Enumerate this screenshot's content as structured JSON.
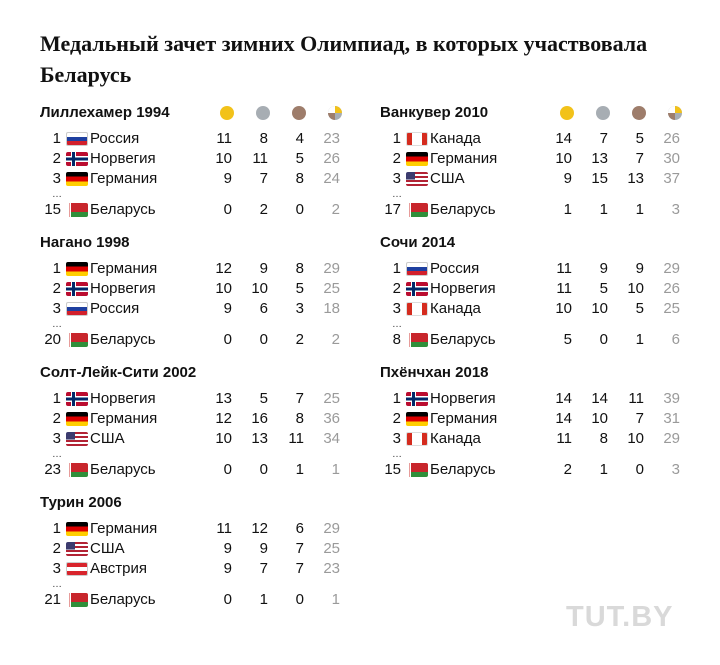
{
  "title": "Медальный зачет зимних Олимпиад, в которых участвовала Беларусь",
  "watermark": "TUT.BY",
  "medal_colors": {
    "gold": "#f2c21a",
    "silver": "#a7adb3",
    "bronze": "#9e7d6b",
    "total_text": "#9a9a9a"
  },
  "legend_icons": [
    "gold-medal-icon",
    "silver-medal-icon",
    "bronze-medal-icon",
    "total-medals-icon"
  ],
  "chart_data": {
    "type": "table",
    "columns": [
      "rank",
      "country",
      "gold",
      "silver",
      "bronze",
      "total"
    ],
    "games": [
      {
        "title": "Лиллехамер 1994",
        "rows": [
          {
            "rank": "1",
            "country": "Россия",
            "flag": "russia",
            "gold": 11,
            "silver": 8,
            "bronze": 4,
            "total": 23
          },
          {
            "rank": "2",
            "country": "Норвегия",
            "flag": "norway",
            "gold": 10,
            "silver": 11,
            "bronze": 5,
            "total": 26
          },
          {
            "rank": "3",
            "country": "Германия",
            "flag": "germany",
            "gold": 9,
            "silver": 7,
            "bronze": 8,
            "total": 24
          }
        ],
        "belarus": {
          "rank": "15",
          "country": "Беларусь",
          "flag": "belarus",
          "gold": 0,
          "silver": 2,
          "bronze": 0,
          "total": 2
        }
      },
      {
        "title": "Ванкувер 2010",
        "rows": [
          {
            "rank": "1",
            "country": "Канада",
            "flag": "canada",
            "gold": 14,
            "silver": 7,
            "bronze": 5,
            "total": 26
          },
          {
            "rank": "2",
            "country": "Германия",
            "flag": "germany",
            "gold": 10,
            "silver": 13,
            "bronze": 7,
            "total": 30
          },
          {
            "rank": "3",
            "country": "США",
            "flag": "usa",
            "gold": 9,
            "silver": 15,
            "bronze": 13,
            "total": 37
          }
        ],
        "belarus": {
          "rank": "17",
          "country": "Беларусь",
          "flag": "belarus",
          "gold": 1,
          "silver": 1,
          "bronze": 1,
          "total": 3
        }
      },
      {
        "title": "Нагано 1998",
        "rows": [
          {
            "rank": "1",
            "country": "Германия",
            "flag": "germany",
            "gold": 12,
            "silver": 9,
            "bronze": 8,
            "total": 29
          },
          {
            "rank": "2",
            "country": "Норвегия",
            "flag": "norway",
            "gold": 10,
            "silver": 10,
            "bronze": 5,
            "total": 25
          },
          {
            "rank": "3",
            "country": "Россия",
            "flag": "russia",
            "gold": 9,
            "silver": 6,
            "bronze": 3,
            "total": 18
          }
        ],
        "belarus": {
          "rank": "20",
          "country": "Беларусь",
          "flag": "belarus",
          "gold": 0,
          "silver": 0,
          "bronze": 2,
          "total": 2
        }
      },
      {
        "title": "Сочи 2014",
        "rows": [
          {
            "rank": "1",
            "country": "Россия",
            "flag": "russia",
            "gold": 11,
            "silver": 9,
            "bronze": 9,
            "total": 29
          },
          {
            "rank": "2",
            "country": "Норвегия",
            "flag": "norway",
            "gold": 11,
            "silver": 5,
            "bronze": 10,
            "total": 26
          },
          {
            "rank": "3",
            "country": "Канада",
            "flag": "canada",
            "gold": 10,
            "silver": 10,
            "bronze": 5,
            "total": 25
          }
        ],
        "belarus": {
          "rank": "8",
          "country": "Беларусь",
          "flag": "belarus",
          "gold": 5,
          "silver": 0,
          "bronze": 1,
          "total": 6
        }
      },
      {
        "title": "Солт-Лейк-Сити 2002",
        "rows": [
          {
            "rank": "1",
            "country": "Норвегия",
            "flag": "norway",
            "gold": 13,
            "silver": 5,
            "bronze": 7,
            "total": 25
          },
          {
            "rank": "2",
            "country": "Германия",
            "flag": "germany",
            "gold": 12,
            "silver": 16,
            "bronze": 8,
            "total": 36
          },
          {
            "rank": "3",
            "country": "США",
            "flag": "usa",
            "gold": 10,
            "silver": 13,
            "bronze": 11,
            "total": 34
          }
        ],
        "belarus": {
          "rank": "23",
          "country": "Беларусь",
          "flag": "belarus",
          "gold": 0,
          "silver": 0,
          "bronze": 1,
          "total": 1
        }
      },
      {
        "title": "Пхёнчхан 2018",
        "rows": [
          {
            "rank": "1",
            "country": "Норвегия",
            "flag": "norway",
            "gold": 14,
            "silver": 14,
            "bronze": 11,
            "total": 39
          },
          {
            "rank": "2",
            "country": "Германия",
            "flag": "germany",
            "gold": 14,
            "silver": 10,
            "bronze": 7,
            "total": 31
          },
          {
            "rank": "3",
            "country": "Канада",
            "flag": "canada",
            "gold": 11,
            "silver": 8,
            "bronze": 10,
            "total": 29
          }
        ],
        "belarus": {
          "rank": "15",
          "country": "Беларусь",
          "flag": "belarus",
          "gold": 2,
          "silver": 1,
          "bronze": 0,
          "total": 3
        }
      },
      {
        "title": "Турин 2006",
        "rows": [
          {
            "rank": "1",
            "country": "Германия",
            "flag": "germany",
            "gold": 11,
            "silver": 12,
            "bronze": 6,
            "total": 29
          },
          {
            "rank": "2",
            "country": "США",
            "flag": "usa",
            "gold": 9,
            "silver": 9,
            "bronze": 7,
            "total": 25
          },
          {
            "rank": "3",
            "country": "Австрия",
            "flag": "austria",
            "gold": 9,
            "silver": 7,
            "bronze": 7,
            "total": 23
          }
        ],
        "belarus": {
          "rank": "21",
          "country": "Беларусь",
          "flag": "belarus",
          "gold": 0,
          "silver": 1,
          "bronze": 0,
          "total": 1
        }
      }
    ]
  }
}
